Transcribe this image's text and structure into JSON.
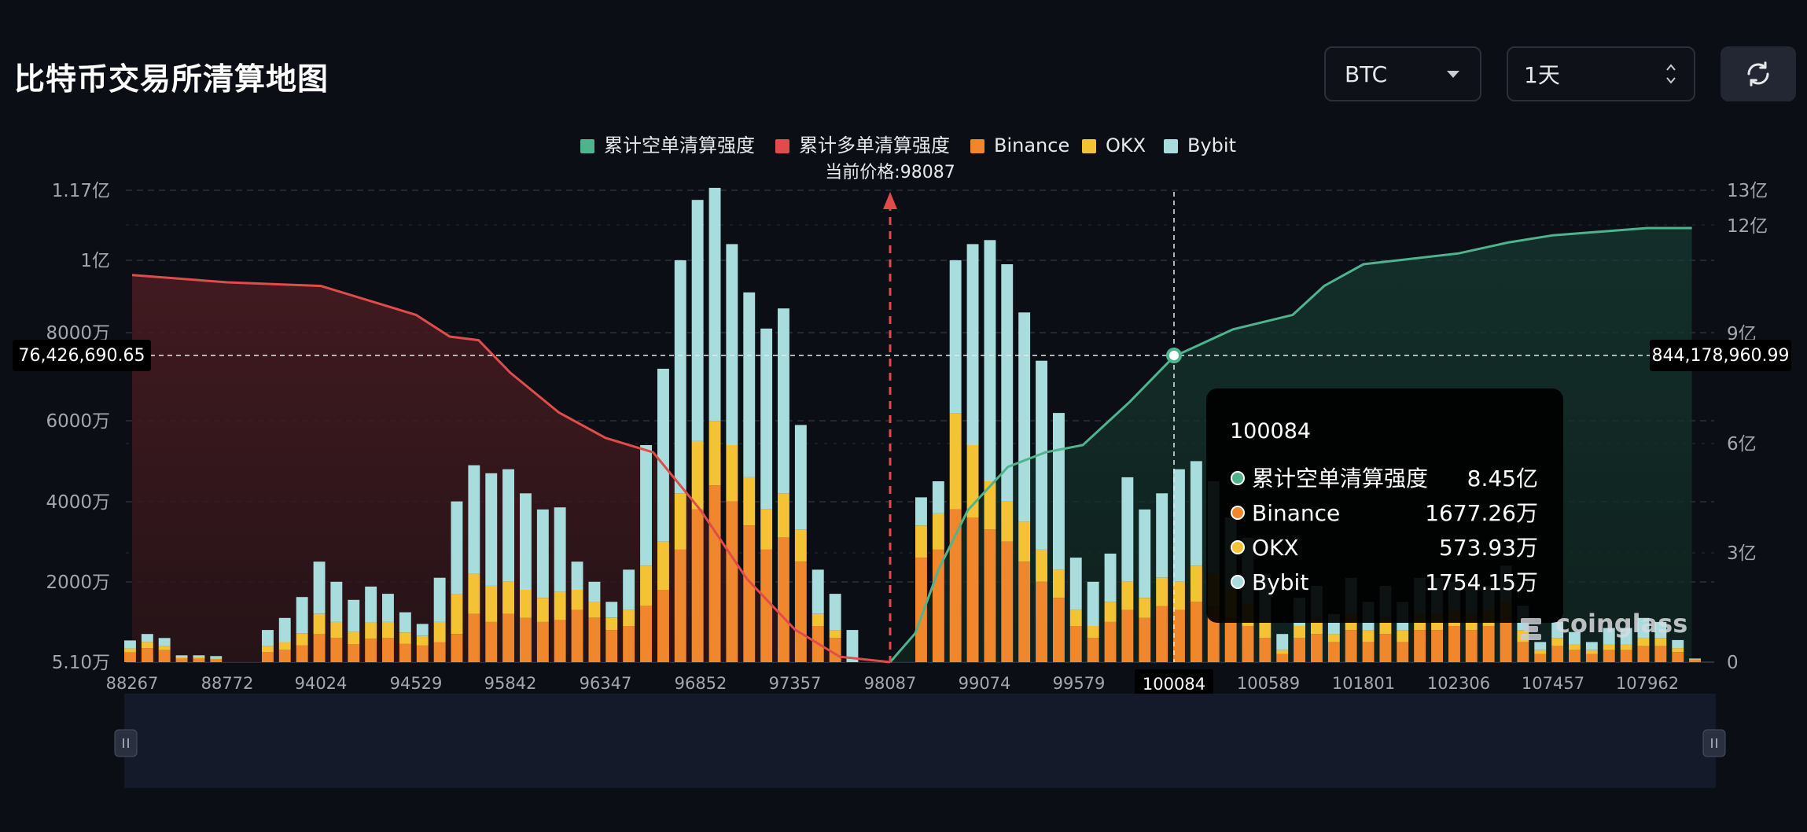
{
  "page": {
    "title": "比特币交易所清算地图"
  },
  "controls": {
    "coin_select": {
      "value": "BTC"
    },
    "range_select": {
      "value": "1天"
    },
    "refresh_icon": "refresh-icon"
  },
  "colors": {
    "short_cum": "#4fb38e",
    "long_cum": "#e04b4b",
    "binance": "#f0872c",
    "okx": "#f4c335",
    "bybit": "#a9dcdc",
    "background": "#0b0e14"
  },
  "chart_data": {
    "type": "bar",
    "legend": [
      "累计空单清算强度",
      "累计多单清算强度",
      "Binance",
      "OKX",
      "Bybit"
    ],
    "legend_position": "top-center",
    "current_price_label": "当前价格:98087",
    "current_price": 98087,
    "x_tick_labels": [
      "88267",
      "88772",
      "94024",
      "94529",
      "95842",
      "96347",
      "96852",
      "97357",
      "98087",
      "99074",
      "99579",
      "100084",
      "100589",
      "101801",
      "102306",
      "107457",
      "107962"
    ],
    "left_axis_labels": [
      "1.17亿",
      "1亿",
      "8000万",
      "6000万",
      "4000万",
      "2000万",
      "5.10万"
    ],
    "right_axis_labels": [
      "13亿",
      "12亿",
      "9亿",
      "6亿",
      "3亿",
      "0"
    ],
    "left_ylim": [
      51000,
      117000000
    ],
    "right_ylim": [
      0,
      1300000000
    ],
    "crosshair": {
      "left_value_label": "76,426,690.65",
      "right_value_label": "844,178,960.99",
      "x_label": "100084"
    },
    "tooltip": {
      "price": "100084",
      "rows": [
        {
          "name": "累计空单清算强度",
          "value": "8.45亿"
        },
        {
          "name": "Binance",
          "value": "1677.26万"
        },
        {
          "name": "OKX",
          "value": "573.93万"
        },
        {
          "name": "Bybit",
          "value": "1754.15万"
        }
      ]
    },
    "watermark": "coinglass",
    "bars_binance_wan": [
      240,
      350,
      300,
      90,
      90,
      70,
      0,
      0,
      250,
      300,
      420,
      700,
      600,
      450,
      580,
      600,
      460,
      420,
      500,
      700,
      1200,
      1000,
      1200,
      1100,
      1000,
      1050,
      1300,
      1100,
      800,
      900,
      1400,
      1800,
      2800,
      3800,
      4400,
      4000,
      3400,
      2800,
      3100,
      2500,
      900,
      600,
      0,
      0,
      0,
      0,
      2600,
      2800,
      3800,
      3600,
      3300,
      3000,
      2500,
      2000,
      1600,
      900,
      600,
      1000,
      1300,
      1100,
      1400,
      1300,
      1500,
      1400,
      1100,
      900,
      600,
      200,
      600,
      700,
      500,
      800,
      500,
      700,
      500,
      800,
      800,
      900,
      800,
      900,
      1000,
      500,
      200,
      400,
      300,
      200,
      300,
      300,
      400,
      400,
      250,
      50
    ],
    "bars_okx_wan": [
      100,
      150,
      100,
      30,
      30,
      30,
      0,
      0,
      150,
      200,
      300,
      500,
      400,
      300,
      400,
      400,
      280,
      230,
      500,
      1000,
      1000,
      900,
      800,
      700,
      600,
      700,
      500,
      400,
      300,
      400,
      1000,
      1200,
      1400,
      1700,
      1600,
      1400,
      1200,
      1000,
      1100,
      800,
      300,
      200,
      0,
      0,
      0,
      0,
      800,
      900,
      2400,
      1800,
      1200,
      1000,
      1000,
      800,
      700,
      400,
      300,
      500,
      700,
      500,
      700,
      700,
      900,
      800,
      700,
      550,
      400,
      100,
      300,
      400,
      200,
      400,
      300,
      400,
      300,
      400,
      400,
      400,
      400,
      400,
      500,
      300,
      100,
      200,
      150,
      100,
      150,
      150,
      200,
      200,
      100,
      20
    ],
    "bars_bybit_wan": [
      200,
      200,
      200,
      50,
      50,
      50,
      0,
      0,
      400,
      600,
      900,
      1300,
      1000,
      800,
      900,
      700,
      500,
      300,
      1100,
      2300,
      2700,
      2800,
      2800,
      2400,
      2200,
      2100,
      700,
      500,
      400,
      1000,
      3000,
      4300,
      5800,
      6000,
      5800,
      5000,
      4600,
      4500,
      4600,
      2600,
      1100,
      900,
      800,
      0,
      0,
      0,
      700,
      800,
      3800,
      5000,
      6000,
      5900,
      5200,
      4700,
      3900,
      1300,
      1100,
      1200,
      2600,
      2200,
      2100,
      2800,
      2600,
      2300,
      1800,
      1650,
      1200,
      400,
      700,
      800,
      500,
      900,
      700,
      800,
      700,
      900,
      900,
      700,
      800,
      600,
      900,
      600,
      200,
      400,
      300,
      200,
      400,
      400,
      500,
      400,
      200,
      20
    ],
    "cum_short_yi_points": [
      [
        98087,
        0
      ],
      [
        98350,
        0.8
      ],
      [
        98600,
        2.6
      ],
      [
        98900,
        4.2
      ],
      [
        99200,
        5.4
      ],
      [
        99400,
        5.8
      ],
      [
        99600,
        6.0
      ],
      [
        99850,
        7.2
      ],
      [
        100084,
        8.45
      ],
      [
        100400,
        9.2
      ],
      [
        100900,
        9.6
      ],
      [
        101300,
        10.4
      ],
      [
        101800,
        11.0
      ],
      [
        102306,
        11.3
      ],
      [
        105000,
        11.6
      ],
      [
        107457,
        11.8
      ],
      [
        107962,
        12.0
      ],
      [
        108200,
        12.0
      ]
    ],
    "cum_long_yi_points": [
      [
        88267,
        10.7
      ],
      [
        88772,
        10.5
      ],
      [
        94024,
        10.4
      ],
      [
        94529,
        9.6
      ],
      [
        95000,
        9.0
      ],
      [
        95400,
        8.9
      ],
      [
        95842,
        8.0
      ],
      [
        96100,
        6.9
      ],
      [
        96347,
        6.2
      ],
      [
        96600,
        5.8
      ],
      [
        96852,
        4.2
      ],
      [
        97100,
        2.3
      ],
      [
        97357,
        0.9
      ],
      [
        97700,
        0.15
      ],
      [
        98087,
        0
      ]
    ]
  }
}
